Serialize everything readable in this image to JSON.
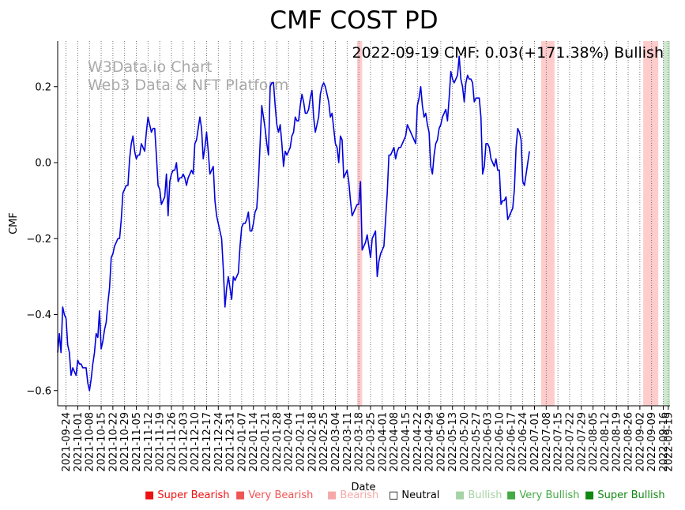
{
  "chart_data": {
    "type": "line",
    "title": "CMF COST PD",
    "annotation": "2022-09-19 CMF: 0.03(+171.38%) Bullish",
    "watermark": [
      "W3Data.io Chart",
      "Web3 Data & NFT Platform"
    ],
    "xlabel": "Date",
    "ylabel": "CMF",
    "ylim": [
      -0.64,
      0.32
    ],
    "yticks": [
      -0.6,
      -0.4,
      -0.2,
      0.0,
      0.2
    ],
    "ytick_labels": [
      "−0.6",
      "−0.4",
      "−0.2",
      "0.0",
      "0.2"
    ],
    "date_range": [
      "2021-09-19",
      "2022-09-20"
    ],
    "xtick_labels": [
      "2021-09-24",
      "2021-10-01",
      "2021-10-08",
      "2021-10-15",
      "2021-10-22",
      "2021-10-29",
      "2021-11-05",
      "2021-11-12",
      "2021-11-19",
      "2021-11-26",
      "2021-12-03",
      "2021-12-10",
      "2021-12-17",
      "2021-12-24",
      "2021-12-31",
      "2022-01-07",
      "2022-01-14",
      "2022-01-21",
      "2022-01-28",
      "2022-02-04",
      "2022-02-11",
      "2022-02-18",
      "2022-02-25",
      "2022-03-04",
      "2022-03-11",
      "2022-03-18",
      "2022-03-25",
      "2022-04-01",
      "2022-04-08",
      "2022-04-15",
      "2022-04-22",
      "2022-04-29",
      "2022-05-06",
      "2022-05-13",
      "2022-05-20",
      "2022-05-27",
      "2022-06-03",
      "2022-06-10",
      "2022-06-17",
      "2022-06-24",
      "2022-07-01",
      "2022-07-08",
      "2022-07-15",
      "2022-07-22",
      "2022-07-29",
      "2022-08-05",
      "2022-08-12",
      "2022-08-19",
      "2022-08-26",
      "2022-09-02",
      "2022-09-09",
      "2022-09-16",
      "2022-09-19"
    ],
    "series": [
      {
        "name": "CMF",
        "color": "#0000dd",
        "start_date": "2021-09-19",
        "values": [
          -0.5,
          -0.45,
          -0.5,
          -0.38,
          -0.4,
          -0.41,
          -0.48,
          -0.5,
          -0.56,
          -0.54,
          -0.55,
          -0.56,
          -0.52,
          -0.53,
          -0.53,
          -0.54,
          -0.54,
          -0.54,
          -0.58,
          -0.6,
          -0.57,
          -0.53,
          -0.5,
          -0.45,
          -0.46,
          -0.39,
          -0.49,
          -0.47,
          -0.44,
          -0.42,
          -0.37,
          -0.33,
          -0.25,
          -0.24,
          -0.22,
          -0.21,
          -0.2,
          -0.2,
          -0.15,
          -0.08,
          -0.07,
          -0.06,
          -0.06,
          0.01,
          0.05,
          0.07,
          0.03,
          0.01,
          0.02,
          0.02,
          0.05,
          0.04,
          0.03,
          0.08,
          0.12,
          0.1,
          0.08,
          0.09,
          0.09,
          0.02,
          -0.06,
          -0.07,
          -0.11,
          -0.1,
          -0.09,
          -0.03,
          -0.14,
          -0.05,
          -0.03,
          -0.02,
          -0.02,
          0.0,
          -0.05,
          -0.04,
          -0.04,
          -0.03,
          -0.04,
          -0.06,
          -0.04,
          -0.03,
          -0.02,
          -0.03,
          0.05,
          0.06,
          0.09,
          0.12,
          0.09,
          0.01,
          0.04,
          0.08,
          0.03,
          -0.03,
          -0.02,
          -0.01,
          -0.1,
          -0.14,
          -0.16,
          -0.18,
          -0.2,
          -0.28,
          -0.38,
          -0.33,
          -0.3,
          -0.33,
          -0.36,
          -0.3,
          -0.31,
          -0.3,
          -0.29,
          -0.22,
          -0.17,
          -0.16,
          -0.16,
          -0.15,
          -0.13,
          -0.18,
          -0.18,
          -0.16,
          -0.13,
          -0.12,
          -0.05,
          0.05,
          0.15,
          0.12,
          0.09,
          0.05,
          0.02,
          0.2,
          0.21,
          0.21,
          0.15,
          0.1,
          0.08,
          0.1,
          0.05,
          -0.01,
          0.03,
          0.02,
          0.03,
          0.04,
          0.07,
          0.08,
          0.12,
          0.11,
          0.11,
          0.15,
          0.18,
          0.16,
          0.13,
          0.13,
          0.14,
          0.17,
          0.19,
          0.12,
          0.08,
          0.1,
          0.12,
          0.18,
          0.2,
          0.21,
          0.2,
          0.18,
          0.16,
          0.12,
          0.13,
          0.09,
          0.05,
          0.04,
          0.0,
          0.07,
          0.06,
          -0.04,
          -0.03,
          -0.02,
          -0.05,
          -0.1,
          -0.14,
          -0.13,
          -0.12,
          -0.11,
          -0.11,
          -0.05,
          -0.23,
          -0.22,
          -0.21,
          -0.19,
          -0.22,
          -0.25,
          -0.2,
          -0.19,
          -0.18,
          -0.3,
          -0.26,
          -0.24,
          -0.23,
          -0.22,
          -0.15,
          -0.08,
          0.02,
          0.02,
          0.03,
          0.04,
          0.01,
          0.03,
          0.04,
          0.04,
          0.05,
          0.06,
          0.07,
          0.1,
          0.09,
          0.08,
          0.07,
          0.06,
          0.05,
          0.15,
          0.17,
          0.2,
          0.15,
          0.12,
          0.13,
          0.1,
          0.08,
          -0.01,
          -0.03,
          0.02,
          0.05,
          0.06,
          0.09,
          0.1,
          0.12,
          0.13,
          0.14,
          0.11,
          0.17,
          0.24,
          0.22,
          0.21,
          0.22,
          0.23,
          0.28,
          0.22,
          0.2,
          0.16,
          0.21,
          0.23,
          0.22,
          0.22,
          0.21,
          0.16,
          0.17,
          0.17,
          0.17,
          0.12,
          -0.03,
          -0.01,
          0.05,
          0.05,
          0.04,
          0.01,
          0.0,
          -0.01,
          0.01,
          -0.02,
          -0.02,
          -0.11,
          -0.1,
          -0.1,
          -0.09,
          -0.15,
          -0.14,
          -0.13,
          -0.12,
          -0.07,
          0.04,
          0.09,
          0.08,
          0.06,
          -0.05,
          -0.06,
          -0.03,
          0.0,
          0.03
        ]
      }
    ],
    "signal_bands": [
      {
        "start": "2022-03-17",
        "end": "2022-03-20",
        "signal": "Bearish",
        "color": "#ffcccc"
      },
      {
        "start": "2022-07-05",
        "end": "2022-07-13",
        "signal": "Bearish",
        "color": "#ffcccc"
      },
      {
        "start": "2022-09-04",
        "end": "2022-09-13",
        "signal": "Bearish",
        "color": "#ffcccc"
      },
      {
        "start": "2022-09-16",
        "end": "2022-09-20",
        "signal": "Bullish",
        "color": "#cfe8cf"
      }
    ],
    "legend": [
      {
        "label": "Super Bearish",
        "color": "#ee1111"
      },
      {
        "label": "Very Bearish",
        "color": "#f05555"
      },
      {
        "label": "Bearish",
        "color": "#f6a8a8"
      },
      {
        "label": "Neutral",
        "color": "#000000"
      },
      {
        "label": "Bullish",
        "color": "#a5d3a5"
      },
      {
        "label": "Very Bullish",
        "color": "#44aa44"
      },
      {
        "label": "Super Bullish",
        "color": "#118811"
      }
    ]
  }
}
